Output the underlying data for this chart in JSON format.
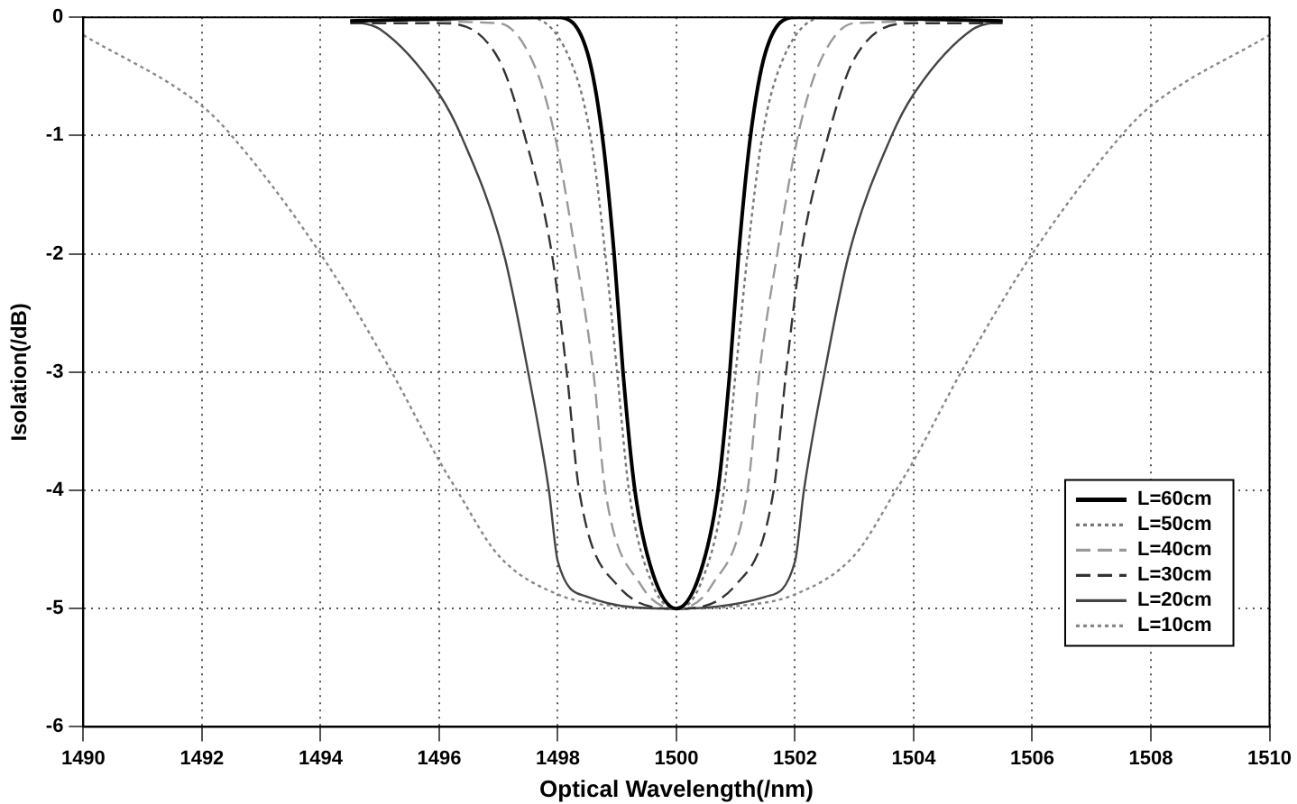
{
  "chart_data": {
    "type": "line",
    "xlabel": "Optical Wavelength(/nm)",
    "ylabel": "Isolation(/dB)",
    "xlim": [
      1490,
      1510
    ],
    "ylim": [
      -6,
      0
    ],
    "xticks": [
      1490,
      1492,
      1494,
      1496,
      1498,
      1500,
      1502,
      1504,
      1506,
      1508,
      1510
    ],
    "yticks": [
      -6,
      -5,
      -4,
      -3,
      -2,
      -1,
      0
    ],
    "grid": true,
    "legend": "bottom right",
    "marker": "none",
    "series": [
      {
        "name": "L=60cm",
        "color": "#000000",
        "line_style": "solid",
        "x": [
          1494.5,
          1498,
          1498.5,
          1498.75,
          1498.95,
          1499.1,
          1499.3,
          1499.6,
          1500,
          1500.4,
          1500.7,
          1500.9,
          1501.05,
          1501.25,
          1501.5,
          1502,
          1505.5
        ],
        "values": [
          -0.03,
          0,
          -0.3,
          -1,
          -2,
          -3,
          -4,
          -4.7,
          -5,
          -4.7,
          -4,
          -3,
          -2,
          -1,
          -0.3,
          0,
          -0.03
        ]
      },
      {
        "name": "L=50cm",
        "color": "#777777",
        "line_style": "dotted",
        "x": [
          1494.5,
          1497.5,
          1498.2,
          1498.55,
          1498.8,
          1499,
          1499.2,
          1499.6,
          1500,
          1500.4,
          1500.8,
          1501,
          1501.2,
          1501.45,
          1501.8,
          1502.5,
          1505.5
        ],
        "values": [
          -0.03,
          0,
          -0.35,
          -1,
          -2,
          -3,
          -4,
          -4.8,
          -5,
          -4.8,
          -4,
          -3,
          -2,
          -1,
          -0.35,
          0,
          -0.03
        ]
      },
      {
        "name": "L=40cm",
        "color": "#999999",
        "line_style": "dashed",
        "x": [
          1494.5,
          1497,
          1497.6,
          1497.95,
          1498.3,
          1498.6,
          1498.8,
          1499.4,
          1500,
          1500.6,
          1501.2,
          1501.4,
          1501.7,
          1502.05,
          1502.4,
          1503,
          1505.5
        ],
        "values": [
          -0.03,
          -0.05,
          -0.4,
          -1,
          -2,
          -3,
          -4,
          -4.8,
          -5,
          -4.8,
          -4,
          -3,
          -2,
          -1,
          -0.4,
          -0.05,
          -0.03
        ]
      },
      {
        "name": "L=30cm",
        "color": "#333333",
        "line_style": "dashed",
        "x": [
          1494.5,
          1496,
          1497,
          1497.44,
          1497.9,
          1498.15,
          1498.36,
          1499,
          1500,
          1501,
          1501.64,
          1501.85,
          1502.1,
          1502.56,
          1503,
          1504,
          1505.5
        ],
        "values": [
          -0.05,
          -0.05,
          -0.35,
          -1,
          -2,
          -3,
          -4,
          -4.8,
          -5,
          -4.8,
          -4,
          -3,
          -2,
          -1,
          -0.35,
          -0.05,
          -0.05
        ]
      },
      {
        "name": "L=20cm",
        "color": "#444444",
        "line_style": "solid",
        "x": [
          1494.5,
          1495,
          1496,
          1496.37,
          1497.09,
          1497.5,
          1497.85,
          1498,
          1498.5,
          1500,
          1501.5,
          1502,
          1502.15,
          1502.5,
          1502.91,
          1503.63,
          1504,
          1505,
          1505.5
        ],
        "values": [
          -0.03,
          -0.1,
          -0.65,
          -1,
          -2,
          -3,
          -4,
          -4.6,
          -4.9,
          -5,
          -4.9,
          -4.6,
          -4,
          -3,
          -2,
          -1,
          -0.65,
          -0.1,
          -0.03
        ]
      },
      {
        "name": "L=10cm",
        "color": "#888888",
        "line_style": "dotted",
        "x": [
          1490,
          1492,
          1492.5,
          1494,
          1495.2,
          1496,
          1496.3,
          1497,
          1498,
          1499,
          1500,
          1501,
          1502,
          1503,
          1503.7,
          1504,
          1504.8,
          1506,
          1507.5,
          1508,
          1510
        ],
        "values": [
          -0.15,
          -0.75,
          -1,
          -2,
          -3,
          -3.75,
          -4,
          -4.55,
          -4.88,
          -4.98,
          -5,
          -4.98,
          -4.88,
          -4.55,
          -4,
          -3.75,
          -3,
          -2,
          -1,
          -0.75,
          -0.15
        ]
      }
    ]
  }
}
